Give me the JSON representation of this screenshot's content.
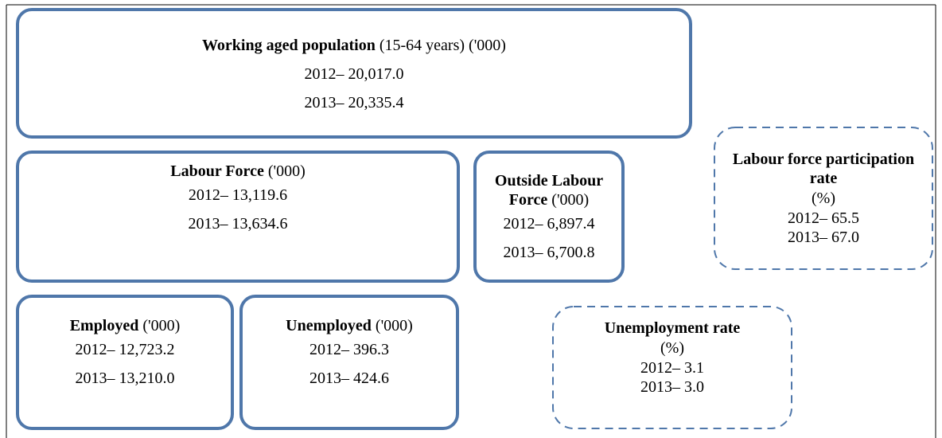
{
  "nodes": [
    {
      "title": "Working aged population",
      "subtitle": "(15-64 years)  ('000)",
      "lines": [
        "2012– 20,017.0",
        "2013– 20,335.4"
      ]
    },
    {
      "title": "Labour Force",
      "subtitle": "('000)",
      "lines": [
        "2012– 13,119.6",
        "2013– 13,634.6"
      ]
    },
    {
      "title": "Outside Labour Force",
      "subtitle": "('000)",
      "lines": [
        "2012– 6,897.4",
        "2013– 6,700.8"
      ]
    },
    {
      "title": "Labour force participation rate",
      "subtitle": "(%)",
      "lines": [
        "2012– 65.5",
        "2013– 67.0"
      ]
    },
    {
      "title": "Employed",
      "subtitle": "('000)",
      "lines": [
        "2012– 12,723.2",
        "2013– 13,210.0"
      ]
    },
    {
      "title": "Unemployed",
      "subtitle": "('000)",
      "lines": [
        "2012– 396.3",
        "2013– 424.6"
      ]
    },
    {
      "title": "Unemployment rate",
      "subtitle": "(%)",
      "lines": [
        "2012– 3.1",
        "2013– 3.0"
      ]
    }
  ]
}
